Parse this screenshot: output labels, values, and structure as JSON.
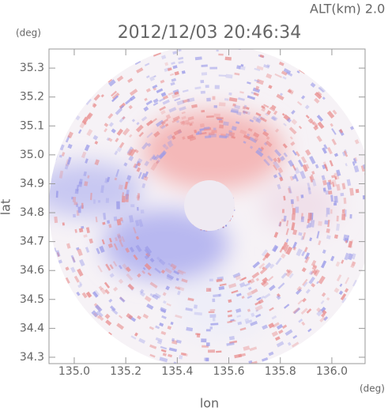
{
  "chart_data": {
    "type": "radar-image",
    "title": "2012/12/03 20:46:34",
    "subtitle": "ALT(km) 2.0",
    "x_label": "lon",
    "y_label": "lat",
    "x_unit": "(deg)",
    "y_unit": "(deg)",
    "xlim": [
      134.902,
      136.129
    ],
    "ylim": [
      34.278,
      35.366
    ],
    "xticks": [
      {
        "value": 135,
        "label": "135.0"
      },
      135.2,
      135.4,
      135.6,
      135.8,
      {
        "value": 136,
        "label": "136.0"
      }
    ],
    "yticks": [
      34.3,
      34.4,
      34.5,
      34.6,
      34.7,
      34.8,
      34.9,
      {
        "value": 35,
        "label": "35.0"
      },
      35.1,
      35.2,
      35.3
    ]
  }
}
